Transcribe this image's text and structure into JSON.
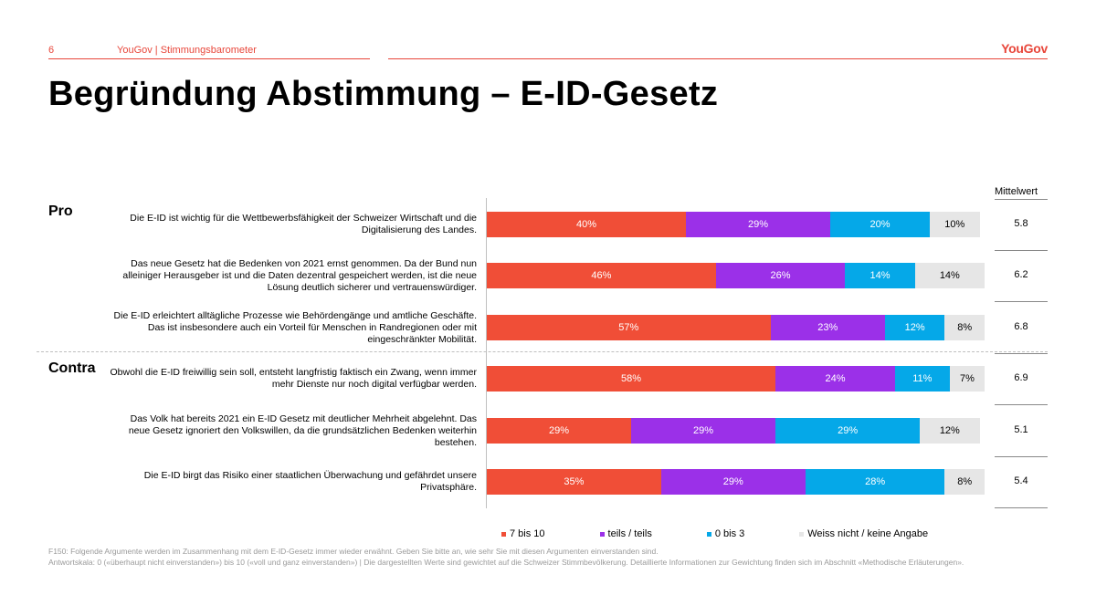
{
  "header": {
    "page_number": "6",
    "subtitle": "YouGov | Stimmungsbarometer",
    "logo": "YouGov"
  },
  "title": "Begründung Abstimmung – E-ID-Gesetz",
  "mean_header": "Mittelwert",
  "sections": {
    "pro": "Pro",
    "contra": "Contra"
  },
  "colors": {
    "7_bis_10": "#f04e37",
    "teils_teils": "#9b30e8",
    "0_bis_3": "#05a8e8",
    "weiss_nicht": "#e6e6e6",
    "accent": "#e8463a"
  },
  "chart_data": {
    "type": "bar",
    "orientation": "horizontal",
    "stacked": true,
    "xlim": [
      0,
      100
    ],
    "legend_position": "bottom",
    "categories": [
      "Die E-ID ist wichtig für die Wettbewerbsfähigkeit der Schweizer Wirtschaft und die Digitalisierung des Landes.",
      "Das neue Gesetz hat die Bedenken von 2021 ernst genommen. Da der Bund nun alleiniger Herausgeber ist und die Daten dezentral gespeichert werden, ist die neue Lösung deutlich sicherer und vertrauenswürdiger.",
      "Die E-ID erleichtert alltägliche Prozesse wie Behördengänge und amtliche Geschäfte. Das ist insbesondere auch ein Vorteil für Menschen in Randregionen oder mit eingeschränkter Mobilität.",
      "Obwohl die E-ID freiwillig sein soll, entsteht langfristig faktisch ein Zwang, wenn immer mehr Dienste nur noch digital verfügbar werden.",
      "Das Volk hat bereits 2021 ein E-ID Gesetz mit deutlicher Mehrheit abgelehnt. Das neue Gesetz ignoriert den Volkswillen, da die grundsätzlichen Bedenken weiterhin bestehen.",
      "Die E-ID birgt das Risiko einer staatlichen Überwachung und gefährdet unsere Privatsphäre."
    ],
    "series": [
      {
        "name": "7 bis 10",
        "values": [
          40,
          46,
          57,
          58,
          29,
          35
        ]
      },
      {
        "name": "teils / teils",
        "values": [
          29,
          26,
          23,
          24,
          29,
          29
        ]
      },
      {
        "name": "0 bis 3",
        "values": [
          20,
          14,
          12,
          11,
          29,
          28
        ]
      },
      {
        "name": "Weiss nicht / keine Angabe",
        "values": [
          10,
          14,
          8,
          7,
          12,
          8
        ]
      }
    ],
    "value_labels": [
      [
        "40%",
        "29%",
        "20%",
        "10%"
      ],
      [
        "46%",
        "26%",
        "14%",
        "14%"
      ],
      [
        "57%",
        "23%",
        "12%",
        "8%"
      ],
      [
        "58%",
        "24%",
        "11%",
        "7%"
      ],
      [
        "29%",
        "29%",
        "29%",
        "12%"
      ],
      [
        "35%",
        "29%",
        "28%",
        "8%"
      ]
    ],
    "means": [
      "5.8",
      "6.2",
      "6.8",
      "6.9",
      "5.1",
      "5.4"
    ]
  },
  "footnote": {
    "line1": "F150: Folgende Argumente werden im Zusammenhang mit dem E-ID-Gesetz immer wieder erwähnt. Geben Sie bitte an, wie sehr Sie mit diesen Argumenten einverstanden sind.",
    "line2": "Antwortskala: 0 («überhaupt nicht einverstanden») bis 10 («voll und ganz einverstanden») | Die dargestellten Werte sind gewichtet auf die Schweizer Stimmbevölkerung. Detaillierte Informationen zur Gewichtung finden sich im Abschnitt «Methodische Erläuterungen»."
  }
}
